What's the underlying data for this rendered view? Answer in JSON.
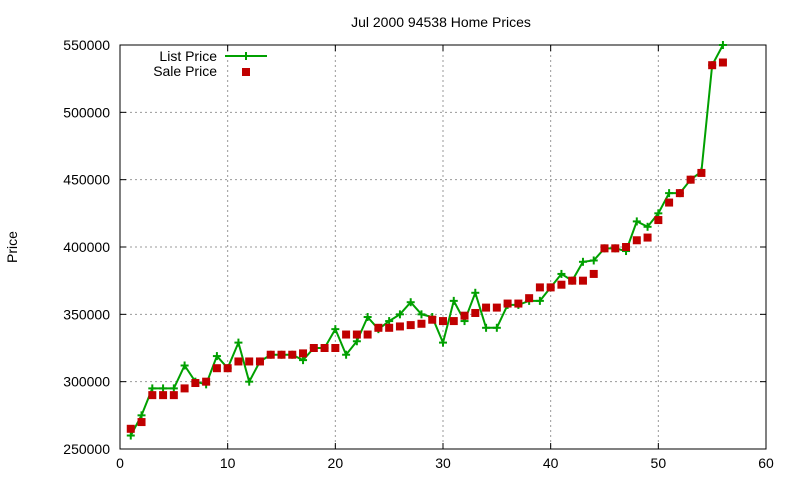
{
  "chart_data": {
    "type": "line",
    "title": "Jul 2000 94538 Home Prices",
    "xlabel": "",
    "ylabel": "Price",
    "xlim": [
      0,
      60
    ],
    "ylim": [
      250000,
      550000
    ],
    "xticks": [
      0,
      10,
      20,
      30,
      40,
      50,
      60
    ],
    "yticks": [
      250000,
      300000,
      350000,
      400000,
      450000,
      500000,
      550000
    ],
    "grid": true,
    "legend_position": "top-left",
    "series": [
      {
        "name": "List Price",
        "style": "line+plus",
        "color": "#00a000",
        "x": [
          1,
          2,
          3,
          4,
          5,
          6,
          7,
          8,
          9,
          10,
          11,
          12,
          13,
          14,
          15,
          16,
          17,
          18,
          19,
          20,
          21,
          22,
          23,
          24,
          25,
          26,
          27,
          28,
          29,
          30,
          31,
          32,
          33,
          34,
          35,
          36,
          37,
          38,
          39,
          40,
          41,
          42,
          43,
          44,
          45,
          46,
          47,
          48,
          49,
          50,
          51,
          52,
          53,
          54,
          55,
          56
        ],
        "values": [
          260000,
          275000,
          295000,
          295000,
          295000,
          312000,
          300000,
          298000,
          319000,
          310000,
          329000,
          300000,
          315000,
          320000,
          320000,
          320000,
          316000,
          325000,
          325000,
          339000,
          320000,
          330000,
          348000,
          339000,
          345000,
          350000,
          359000,
          350000,
          348000,
          329000,
          360000,
          345000,
          366000,
          340000,
          340000,
          357000,
          357000,
          360000,
          360000,
          370000,
          380000,
          375000,
          389000,
          390000,
          399000,
          399000,
          397000,
          419000,
          415000,
          425000,
          440000,
          440000,
          450000,
          456000,
          535000,
          550000
        ]
      },
      {
        "name": "Sale Price",
        "style": "square",
        "color": "#c00000",
        "x": [
          1,
          2,
          3,
          4,
          5,
          6,
          7,
          8,
          9,
          10,
          11,
          12,
          13,
          14,
          15,
          16,
          17,
          18,
          19,
          20,
          21,
          22,
          23,
          24,
          25,
          26,
          27,
          28,
          29,
          30,
          31,
          32,
          33,
          34,
          35,
          36,
          37,
          38,
          39,
          40,
          41,
          42,
          43,
          44,
          45,
          46,
          47,
          48,
          49,
          50,
          51,
          52,
          53,
          54,
          55,
          56
        ],
        "values": [
          265000,
          270000,
          290000,
          290000,
          290000,
          295000,
          299000,
          300000,
          310000,
          310000,
          315000,
          315000,
          315000,
          320000,
          320000,
          320000,
          321000,
          325000,
          325000,
          325000,
          335000,
          335000,
          335000,
          340000,
          340000,
          341000,
          342000,
          343000,
          346000,
          345000,
          345000,
          349000,
          351000,
          355000,
          355000,
          358000,
          358000,
          362000,
          370000,
          370000,
          372000,
          375000,
          375000,
          380000,
          399000,
          399000,
          400000,
          405000,
          407000,
          420000,
          433000,
          440000,
          450000,
          455000,
          535000,
          537000
        ]
      }
    ]
  }
}
